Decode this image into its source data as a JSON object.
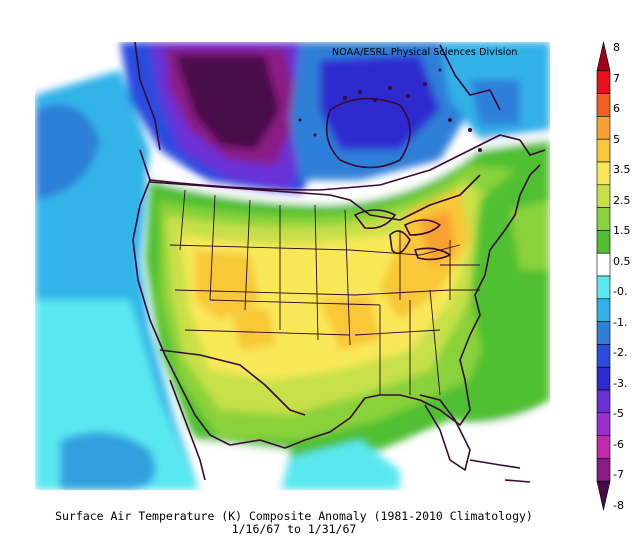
{
  "credit": "NOAA/ESRL Physical Sciences Division",
  "caption": {
    "line1": "Surface Air Temperature (K) Composite Anomaly (1981-2010 Climatology)",
    "line2": "1/16/67  to 1/31/67"
  },
  "legend": {
    "labels": [
      "8",
      "7",
      "6",
      "5",
      "3.5",
      "2.5",
      "1.5",
      "0.5",
      "-0.",
      "-1.",
      "-2.",
      "-3.",
      "-5",
      "-6",
      "-7",
      "-8"
    ],
    "colors": [
      "#a0001a",
      "#e8101c",
      "#f0601e",
      "#f8a030",
      "#f8c838",
      "#f8e858",
      "#c8e048",
      "#8ad23a",
      "#50c030",
      "#ffffff",
      "#5ae8f0",
      "#30b0e8",
      "#2f7fd8",
      "#2a4ce0",
      "#2e2ad0",
      "#6a30d8",
      "#9a2ed0",
      "#c02ab0",
      "#8a1a86",
      "#4a0a4a"
    ]
  }
}
